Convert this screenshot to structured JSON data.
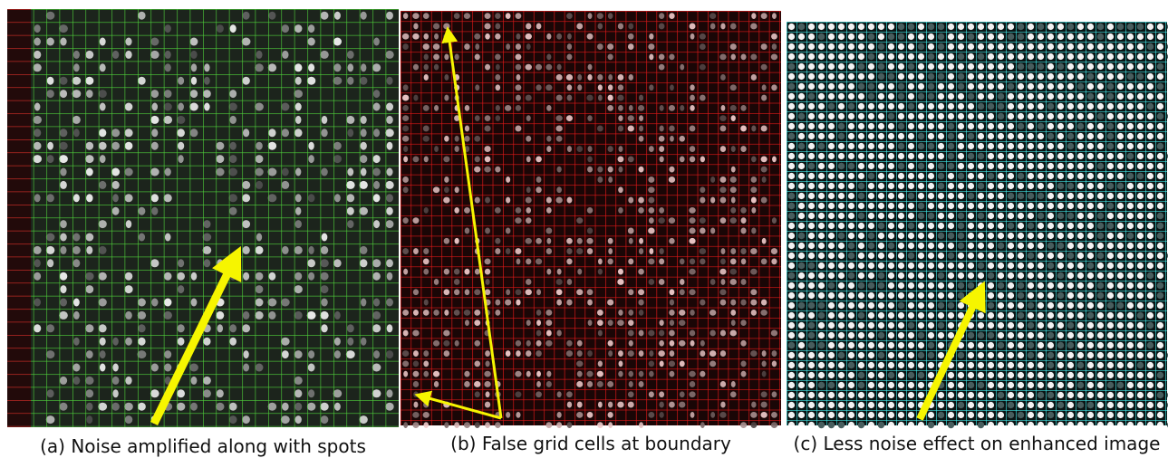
{
  "panels": [
    {
      "caption": "(a) Noise amplified along with spots"
    },
    {
      "caption": "(b)  False grid cells at boundary"
    },
    {
      "caption": "(c)  Less noise effect on enhanced image"
    }
  ]
}
